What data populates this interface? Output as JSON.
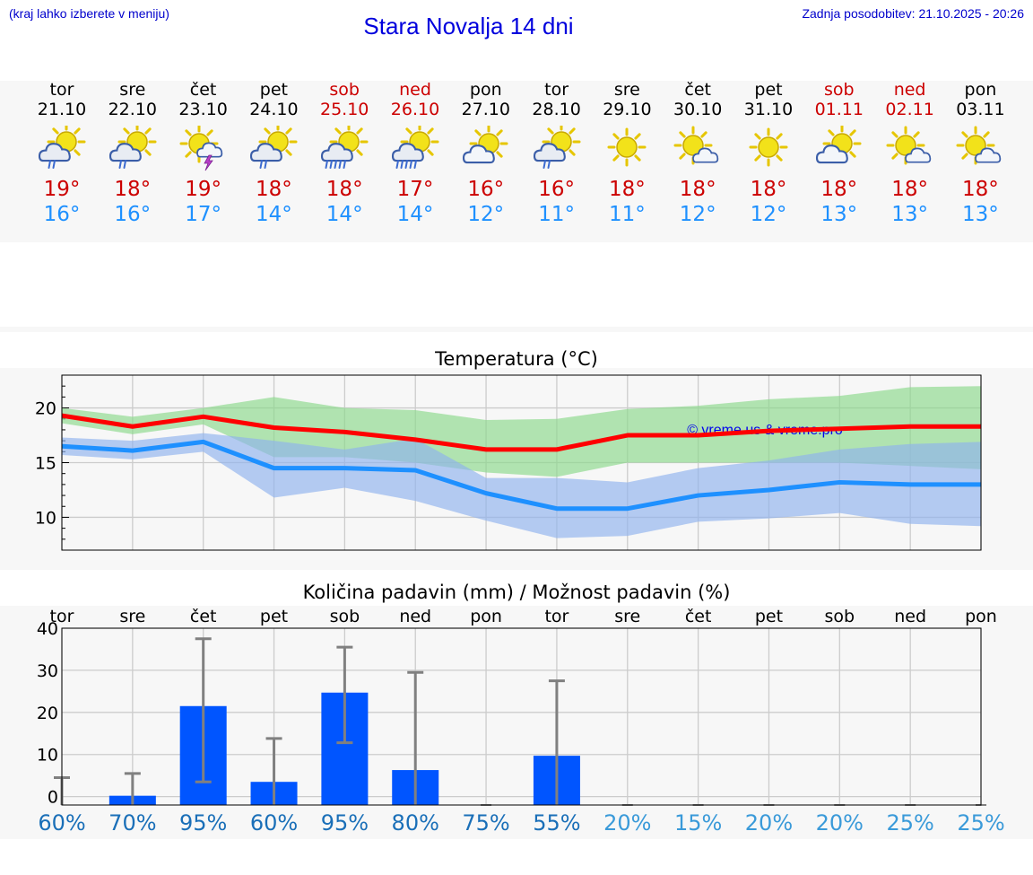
{
  "header": {
    "hint": "(kraj lahko izberete v meniju)",
    "title": "Stara Novalja 14 dni",
    "updated": "Zadnja posodobitev: 21.10.2025 - 20:26"
  },
  "colors": {
    "weekday": "#000000",
    "weekend": "#cc0000",
    "tmax": "#cc0000",
    "tmin": "#1e90ff",
    "bar": "#0055ff",
    "pct_dark": "#1a6fb8",
    "pct_light": "#3a9ad9"
  },
  "days": [
    {
      "dow": "tor",
      "date": "21.10",
      "weekend": false,
      "icon": "sun-cloud-rain-icon",
      "tmax": "19°",
      "tmin": "16°"
    },
    {
      "dow": "sre",
      "date": "22.10",
      "weekend": false,
      "icon": "sun-cloud-rain-icon",
      "tmax": "18°",
      "tmin": "16°"
    },
    {
      "dow": "čet",
      "date": "23.10",
      "weekend": false,
      "icon": "sun-thunder-icon",
      "tmax": "19°",
      "tmin": "17°"
    },
    {
      "dow": "pet",
      "date": "24.10",
      "weekend": false,
      "icon": "sun-cloud-rain-icon",
      "tmax": "18°",
      "tmin": "14°"
    },
    {
      "dow": "sob",
      "date": "25.10",
      "weekend": true,
      "icon": "sun-cloud-heavy-rain-icon",
      "tmax": "18°",
      "tmin": "14°"
    },
    {
      "dow": "ned",
      "date": "26.10",
      "weekend": true,
      "icon": "sun-cloud-heavy-rain-icon",
      "tmax": "17°",
      "tmin": "14°"
    },
    {
      "dow": "pon",
      "date": "27.10",
      "weekend": false,
      "icon": "sun-cloud-icon",
      "tmax": "16°",
      "tmin": "12°"
    },
    {
      "dow": "tor",
      "date": "28.10",
      "weekend": false,
      "icon": "sun-cloud-rain-icon",
      "tmax": "16°",
      "tmin": "11°"
    },
    {
      "dow": "sre",
      "date": "29.10",
      "weekend": false,
      "icon": "sun-icon",
      "tmax": "18°",
      "tmin": "11°"
    },
    {
      "dow": "čet",
      "date": "30.10",
      "weekend": false,
      "icon": "sun-small-cloud-icon",
      "tmax": "18°",
      "tmin": "12°"
    },
    {
      "dow": "pet",
      "date": "31.10",
      "weekend": false,
      "icon": "sun-icon",
      "tmax": "18°",
      "tmin": "12°"
    },
    {
      "dow": "sob",
      "date": "01.11",
      "weekend": true,
      "icon": "sun-cloud-icon",
      "tmax": "18°",
      "tmin": "13°"
    },
    {
      "dow": "ned",
      "date": "02.11",
      "weekend": true,
      "icon": "sun-small-cloud-icon",
      "tmax": "18°",
      "tmin": "13°"
    },
    {
      "dow": "pon",
      "date": "03.11",
      "weekend": false,
      "icon": "sun-small-cloud-icon",
      "tmax": "18°",
      "tmin": "13°"
    }
  ],
  "chart_data": [
    {
      "type": "line",
      "title": "Temperatura (°C)",
      "watermark": "© vreme.us & vreme.pro",
      "x_count": 14,
      "ylim": [
        7,
        23
      ],
      "yticks": [
        10,
        15,
        20
      ],
      "grid": true,
      "series": [
        {
          "values": [
            19.3,
            18.3,
            19.2,
            18.2,
            17.8,
            17.1,
            16.2,
            16.2,
            17.5,
            17.5,
            17.9,
            18.1,
            18.3,
            18.3
          ],
          "color": "#ff0000"
        },
        {
          "values": [
            16.5,
            16.1,
            16.9,
            14.5,
            14.5,
            14.3,
            12.2,
            10.8,
            10.8,
            12.0,
            12.5,
            13.2,
            13.0,
            13.0
          ],
          "color": "#1e90ff"
        }
      ],
      "bands": [
        {
          "upper": [
            20.0,
            19.2,
            20.0,
            21.0,
            20.0,
            19.8,
            18.9,
            19.0,
            19.9,
            20.2,
            20.8,
            21.1,
            21.9,
            22.0
          ],
          "lower": [
            18.6,
            17.6,
            18.5,
            15.5,
            15.5,
            15.0,
            14.1,
            13.7,
            15.0,
            15.0,
            15.0,
            15.0,
            14.7,
            14.4
          ],
          "color": "#8ad98a"
        },
        {
          "upper": [
            17.3,
            17.0,
            17.7,
            17.0,
            16.2,
            17.2,
            13.6,
            13.6,
            13.2,
            14.5,
            15.2,
            16.2,
            16.7,
            16.9
          ],
          "lower": [
            15.7,
            15.3,
            16.0,
            11.8,
            12.7,
            11.5,
            9.7,
            8.1,
            8.3,
            9.6,
            9.9,
            10.4,
            9.4,
            9.2
          ],
          "color": "#8fb2ee"
        }
      ]
    },
    {
      "type": "bar",
      "title": "Količina padavin (mm) / Možnost padavin (%)",
      "categories": [
        "tor",
        "sre",
        "čet",
        "pet",
        "sob",
        "ned",
        "pon",
        "tor",
        "sre",
        "čet",
        "pet",
        "sob",
        "ned",
        "pon"
      ],
      "values": [
        0,
        0.2,
        21.5,
        3.5,
        24.7,
        6.3,
        0,
        9.7,
        0,
        0,
        0,
        0,
        0,
        0
      ],
      "error_low": [
        0,
        0,
        3.5,
        0,
        12.8,
        0,
        0,
        0,
        0,
        0,
        0,
        0,
        0,
        0
      ],
      "error_high": [
        4.5,
        5.5,
        37.5,
        13.8,
        35.5,
        29.5,
        0,
        27.5,
        0,
        0,
        0,
        0,
        0,
        0
      ],
      "probability": [
        "60%",
        "70%",
        "95%",
        "60%",
        "95%",
        "80%",
        "75%",
        "55%",
        "20%",
        "15%",
        "20%",
        "20%",
        "25%",
        "25%"
      ],
      "ylim": [
        -2,
        40
      ],
      "yticks": [
        0,
        10,
        20,
        30,
        40
      ],
      "grid": true
    }
  ]
}
